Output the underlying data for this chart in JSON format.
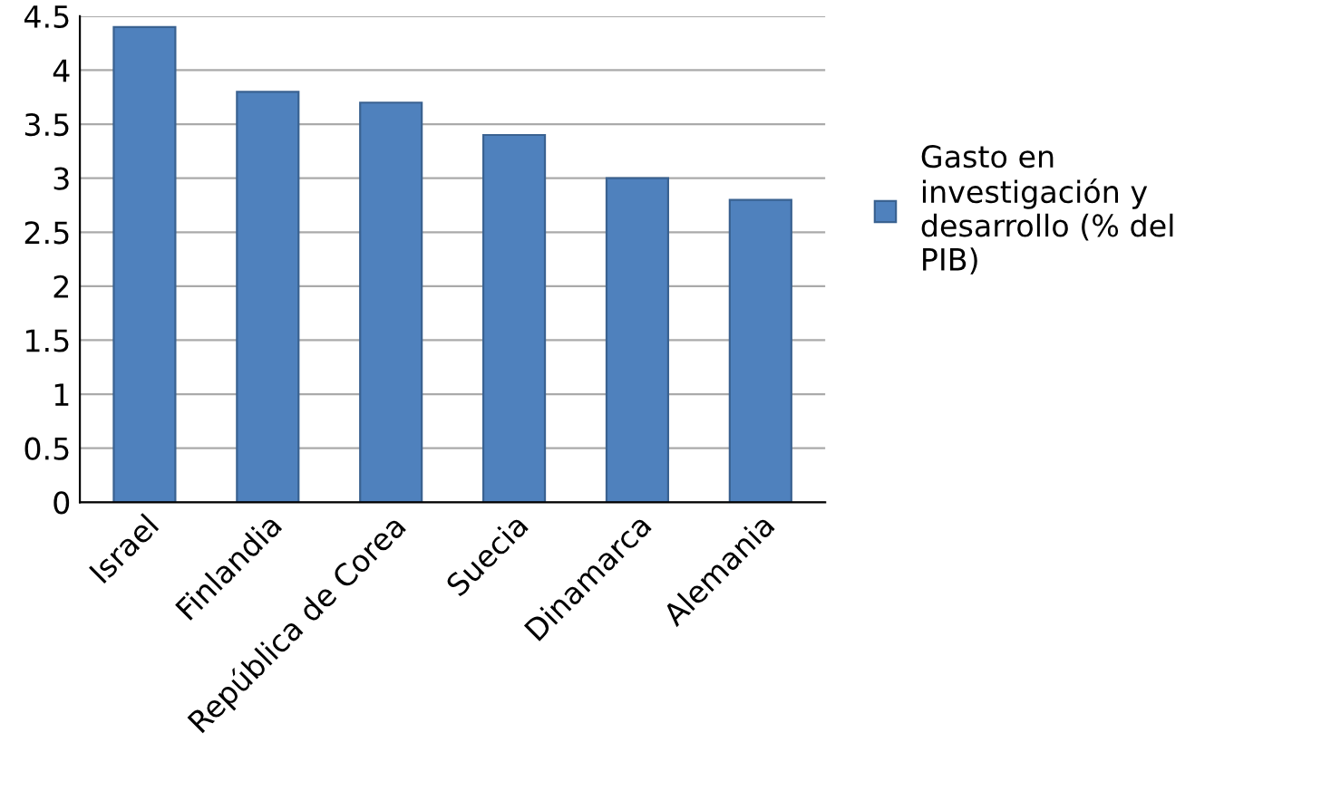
{
  "chart_data": {
    "type": "bar",
    "categories": [
      "Israel",
      "Finlandia",
      "República de Corea",
      "Suecia",
      "Dinamarca",
      "Alemania"
    ],
    "series": [
      {
        "name": "Gasto en investigación y desarrollo (% del PIB)",
        "color": "#4f81bd",
        "values": [
          4.4,
          3.8,
          3.7,
          3.4,
          3.0,
          2.8
        ]
      }
    ],
    "ylim": [
      0,
      4.5
    ],
    "yticks": [
      0,
      0.5,
      1,
      1.5,
      2,
      2.5,
      3,
      3.5,
      4,
      4.5
    ],
    "grid": "y",
    "legend": "right"
  }
}
